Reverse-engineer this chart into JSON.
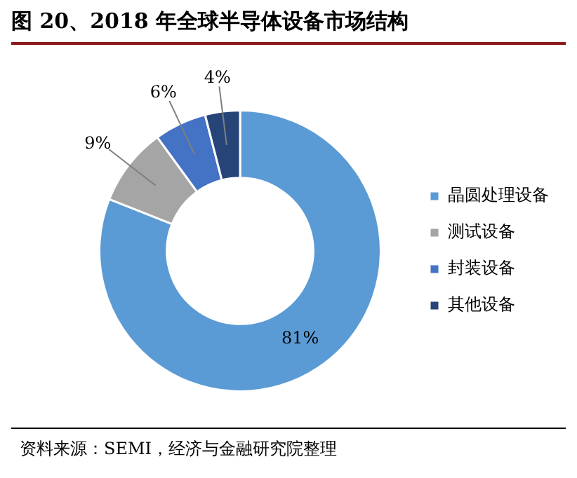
{
  "chart_data": {
    "type": "donut",
    "title": "图 20、2018 年全球半导体设备市场结构",
    "categories": [
      "晶圆处理设备",
      "测试设备",
      "封装设备",
      "其他设备"
    ],
    "values": [
      81,
      9,
      6,
      4
    ],
    "colors": [
      "#5b9bd5",
      "#a5a5a5",
      "#4472c4",
      "#264478"
    ],
    "value_labels": [
      "81%",
      "9%",
      "6%",
      "4%"
    ],
    "legend": "right",
    "annotations": [
      "资料来源：SEMI，经济与金融研究院整理"
    ]
  }
}
